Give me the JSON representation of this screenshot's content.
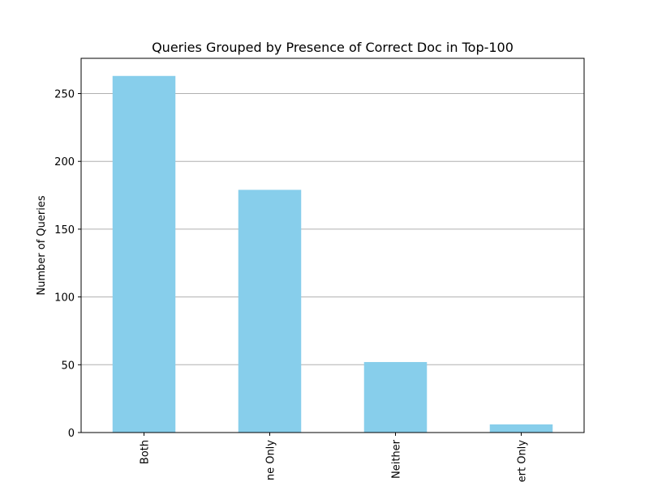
{
  "chart_data": {
    "type": "bar",
    "title": "Queries Grouped by Presence of Correct Doc in Top-100",
    "xlabel": "",
    "ylabel": "Number of Queries",
    "categories": [
      "Both",
      "ne Only",
      "Neither",
      "ert Only"
    ],
    "values": [
      263,
      179,
      52,
      6
    ],
    "ylim": [
      0,
      276
    ],
    "yticks": [
      0,
      50,
      100,
      150,
      200,
      250
    ],
    "grid": "horizontal",
    "bar_color": "#87CEEB",
    "grid_color": "#b0b0b0"
  }
}
